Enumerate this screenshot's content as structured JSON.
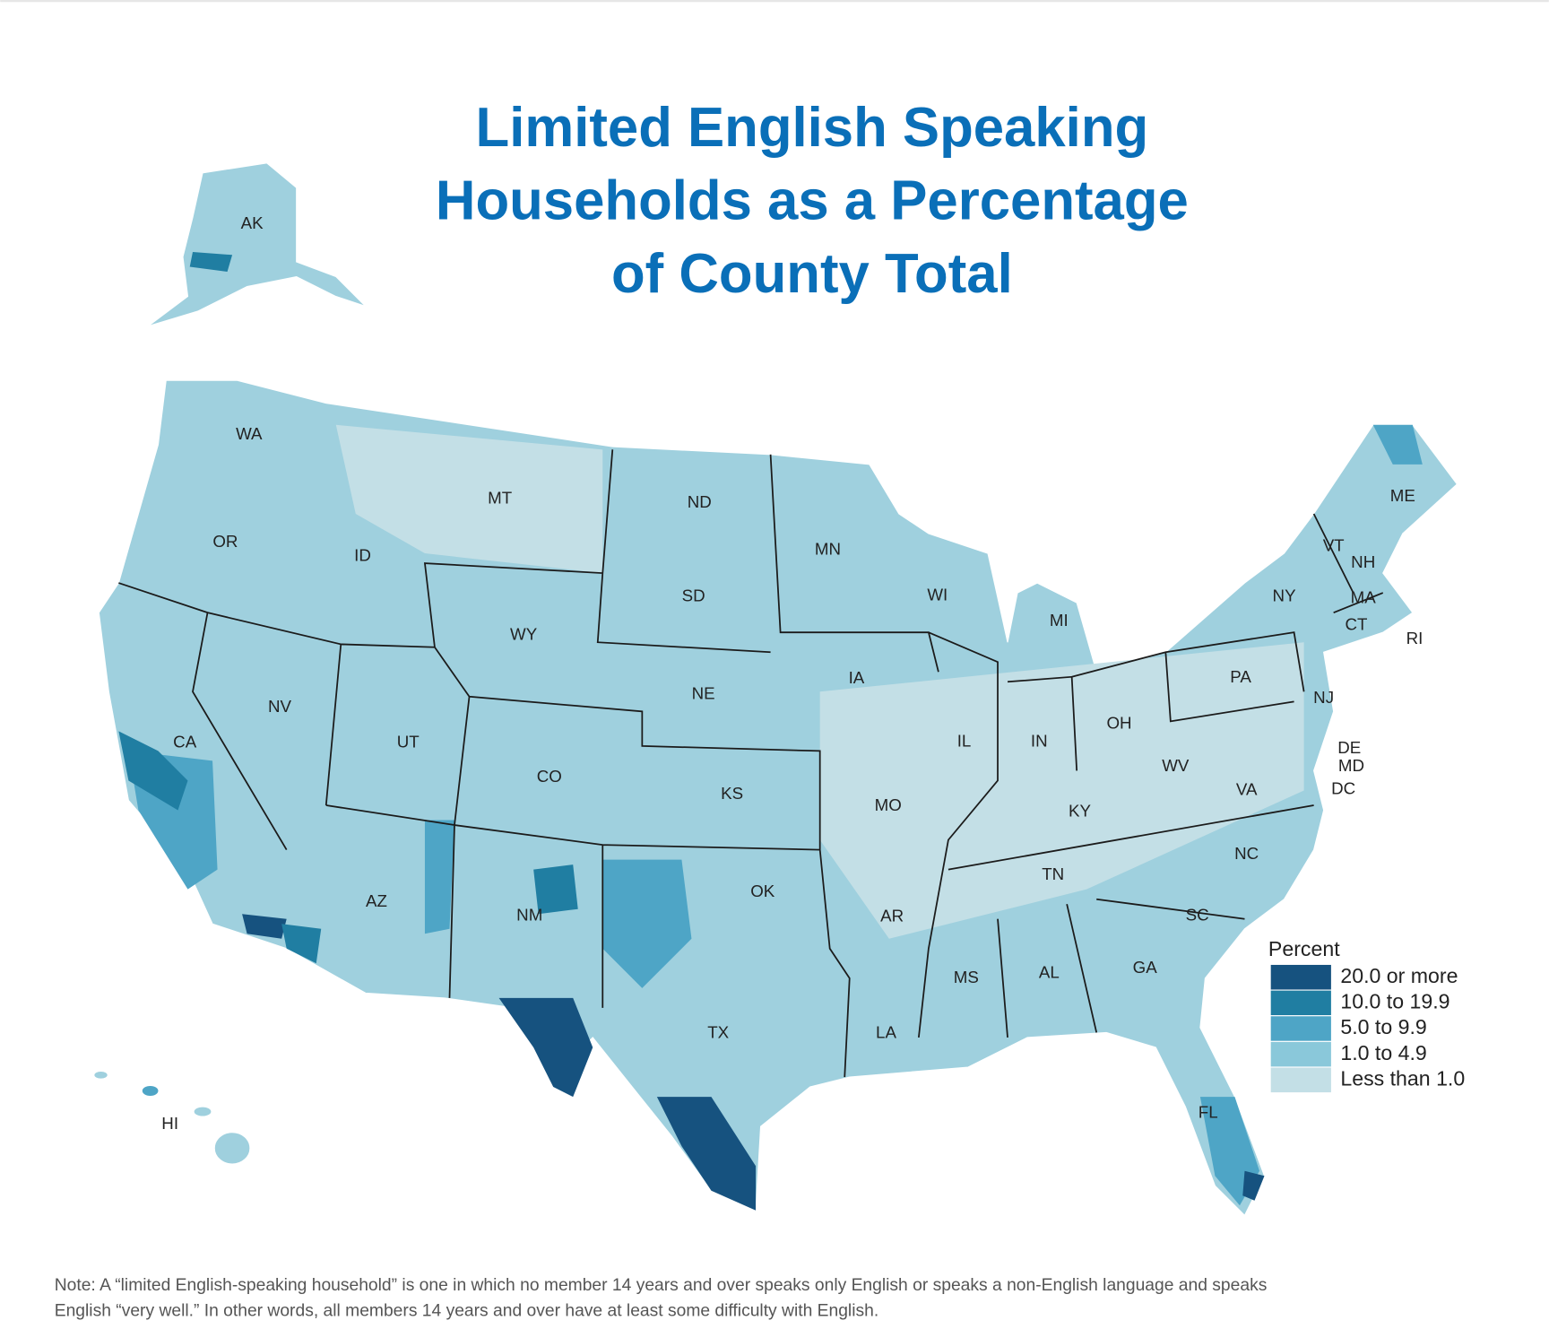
{
  "title": [
    "Limited English Speaking",
    "Households as a Percentage",
    "of County Total"
  ],
  "states": [
    "AK",
    "WA",
    "OR",
    "CA",
    "NV",
    "ID",
    "MT",
    "WY",
    "UT",
    "AZ",
    "CO",
    "NM",
    "ND",
    "SD",
    "NE",
    "KS",
    "OK",
    "TX",
    "MN",
    "IA",
    "MO",
    "AR",
    "LA",
    "WI",
    "IL",
    "MS",
    "MI",
    "IN",
    "KY",
    "TN",
    "AL",
    "OH",
    "WV",
    "GA",
    "FL",
    "SC",
    "NC",
    "VA",
    "PA",
    "NY",
    "ME",
    "VT",
    "NH",
    "MA",
    "CT",
    "RI",
    "NJ",
    "DE",
    "MD",
    "DC",
    "HI"
  ],
  "legend": {
    "title": "Percent",
    "items": [
      {
        "label": "20.0 or more",
        "color": "#16527f"
      },
      {
        "label": "10.0 to 19.9",
        "color": "#207ea2"
      },
      {
        "label": "5.0 to 9.9",
        "color": "#4ea5c6"
      },
      {
        "label": "1.0 to 4.9",
        "color": "#8ac8da"
      },
      {
        "label": "Less than 1.0",
        "color": "#c3dfe6"
      }
    ]
  },
  "note": [
    "Note: A “limited English-speaking household” is one in which no member 14 years and over speaks only English or speaks a non-English language and speaks",
    "English “very well.” In other words, all members 14 years and over have at least some difficulty with English."
  ]
}
